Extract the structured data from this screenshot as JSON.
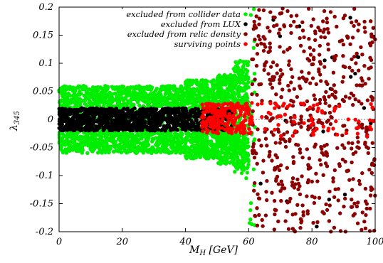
{
  "chart_data": {
    "type": "scatter",
    "xlabel": "M",
    "xlabel_sub": "H",
    "xlabel_unit": " [GeV]",
    "ylabel": "λ",
    "ylabel_sub": "345",
    "xlim": [
      0,
      100
    ],
    "ylim": [
      -0.2,
      0.2
    ],
    "x_ticks": [
      {
        "value": 0,
        "label": "0"
      },
      {
        "value": 20,
        "label": "20"
      },
      {
        "value": 40,
        "label": "40"
      },
      {
        "value": 60,
        "label": "60"
      },
      {
        "value": 80,
        "label": "80"
      },
      {
        "value": 100,
        "label": "100"
      }
    ],
    "y_ticks": [
      {
        "value": -0.2,
        "label": "-0.2"
      },
      {
        "value": -0.15,
        "label": "-0.15"
      },
      {
        "value": -0.1,
        "label": "-0.1"
      },
      {
        "value": -0.05,
        "label": "-0.05"
      },
      {
        "value": 0,
        "label": "0"
      },
      {
        "value": 0.05,
        "label": "0.05"
      },
      {
        "value": 0.1,
        "label": "0.1"
      },
      {
        "value": 0.15,
        "label": "0.15"
      },
      {
        "value": 0.2,
        "label": "0.2"
      }
    ],
    "zero_line": true,
    "legend_position": "top-right",
    "series": [
      {
        "name": "excluded from collider data",
        "color": "#00ee00",
        "regions": [
          {
            "x_range": [
              0,
              40
            ],
            "y_band": [
              -0.06,
              0.06
            ]
          },
          {
            "x_range": [
              40,
              50
            ],
            "y_band": [
              -0.07,
              0.07
            ]
          },
          {
            "x_range": [
              50,
              55
            ],
            "y_band": [
              -0.078,
              0.08
            ]
          },
          {
            "x_range": [
              55,
              60
            ],
            "y_band": [
              -0.09,
              0.105
            ]
          },
          {
            "x_range": [
              60,
              62
            ],
            "y_band": [
              -0.2,
              0.2
            ]
          }
        ]
      },
      {
        "name": "excluded from LUX",
        "color": "#000000",
        "regions": [
          {
            "x_range": [
              0,
              40
            ],
            "y_band": [
              -0.02,
              0.02
            ]
          },
          {
            "x_range": [
              40,
              55
            ],
            "y_band": [
              -0.02,
              0.02
            ]
          },
          {
            "x_range": [
              62,
              100
            ],
            "y_band": [
              -0.2,
              0.2
            ],
            "sparse": true
          }
        ]
      },
      {
        "name": "excluded from relic density",
        "color": "#8b0000",
        "regions": [
          {
            "x_range": [
              61,
              100
            ],
            "y_band": [
              -0.2,
              0.2
            ]
          }
        ]
      },
      {
        "name": "surviving points",
        "color": "#ff0000",
        "regions": [
          {
            "x_range": [
              45,
              61
            ],
            "y_band": [
              -0.025,
              0.03
            ]
          },
          {
            "x_range": [
              61,
              100
            ],
            "y_band": [
              -0.03,
              0.03
            ],
            "sparse": true
          }
        ]
      }
    ]
  }
}
